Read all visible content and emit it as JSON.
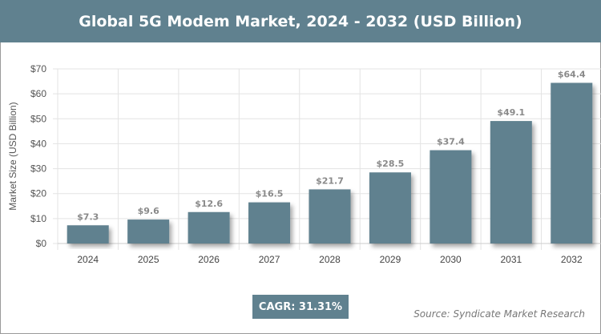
{
  "title": "Global 5G Modem Market, 2024 - 2032 (USD Billion)",
  "cagr": "CAGR: 31.31%",
  "source": "Source: Syndicate Market Research",
  "colors": {
    "bar": "#60818f",
    "header": "#60818f"
  },
  "chart_data": {
    "type": "bar",
    "title": "Global 5G Modem Market, 2024 - 2032 (USD Billion)",
    "xlabel": "",
    "ylabel": "Market Size (USD Billion)",
    "categories": [
      "2024",
      "2025",
      "2026",
      "2027",
      "2028",
      "2029",
      "2030",
      "2031",
      "2032"
    ],
    "values": [
      7.3,
      9.6,
      12.6,
      16.5,
      21.7,
      28.5,
      37.4,
      49.1,
      64.4
    ],
    "data_labels": [
      "$7.3",
      "$9.6",
      "$12.6",
      "$16.5",
      "$21.7",
      "$28.5",
      "$37.4",
      "$49.1",
      "$64.4"
    ],
    "ylim": [
      0,
      70
    ],
    "yticks": [
      "$0",
      "$10",
      "$20",
      "$30",
      "$40",
      "$50",
      "$60",
      "$70"
    ],
    "grid": true,
    "legend": "none"
  }
}
